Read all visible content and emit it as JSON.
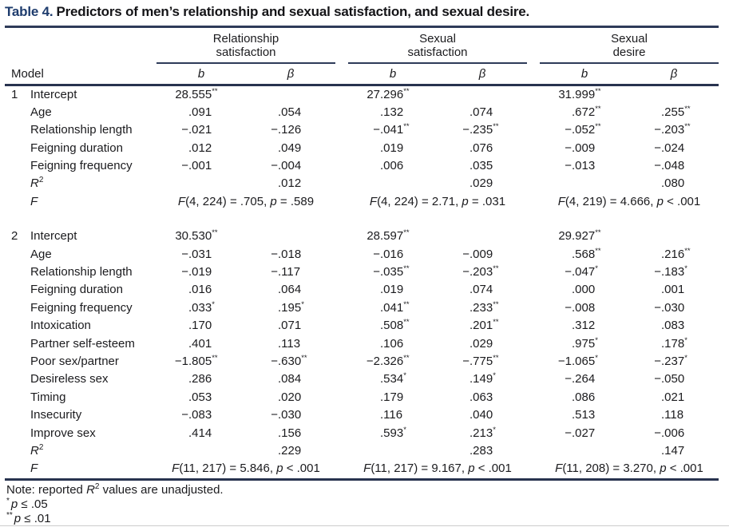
{
  "table": {
    "label": "Table 4.",
    "title": "Predictors of men’s relationship and sexual satisfaction, and sexual desire.",
    "model_header": "Model",
    "sub_headers": [
      "b",
      "β"
    ],
    "col_groups": [
      {
        "line1": "Relationship",
        "line2": "satisfaction"
      },
      {
        "line1": "Sexual",
        "line2": "satisfaction"
      },
      {
        "line1": "Sexual",
        "line2": "desire"
      }
    ],
    "models": [
      {
        "number": "1",
        "rows": [
          {
            "label": "Intercept",
            "cells": [
              "28.555**",
              "",
              "27.296**",
              "",
              "31.999**",
              ""
            ]
          },
          {
            "label": "Age",
            "cells": [
              ".091",
              ".054",
              ".132",
              ".074",
              ".672**",
              ".255**"
            ]
          },
          {
            "label": "Relationship length",
            "cells": [
              "−.021",
              "−.126",
              "−.041**",
              "−.235**",
              "−.052**",
              "−.203**"
            ]
          },
          {
            "label": "Feigning duration",
            "cells": [
              ".012",
              ".049",
              ".019",
              ".076",
              "−.009",
              "−.024"
            ]
          },
          {
            "label": "Feigning frequency",
            "cells": [
              "−.001",
              "−.004",
              ".006",
              ".035",
              "−.013",
              "−.048"
            ]
          },
          {
            "label": "R2",
            "math": "r2",
            "cells": [
              "",
              ".012",
              "",
              ".029",
              "",
              ".080"
            ]
          }
        ],
        "f_row": {
          "label": "F",
          "stats": [
            "F(4, 224) = .705, p = .589",
            "F(4, 224) = 2.71, p = .031",
            "F(4, 219) = 4.666, p < .001"
          ]
        }
      },
      {
        "number": "2",
        "rows": [
          {
            "label": "Intercept",
            "cells": [
              "30.530**",
              "",
              "28.597**",
              "",
              "29.927**",
              ""
            ]
          },
          {
            "label": "Age",
            "cells": [
              "−.031",
              "−.018",
              "−.016",
              "−.009",
              ".568**",
              ".216**"
            ]
          },
          {
            "label": "Relationship length",
            "cells": [
              "−.019",
              "−.117",
              "−.035**",
              "−.203**",
              "−.047*",
              "−.183*"
            ]
          },
          {
            "label": "Feigning duration",
            "cells": [
              ".016",
              ".064",
              ".019",
              ".074",
              ".000",
              ".001"
            ]
          },
          {
            "label": "Feigning frequency",
            "cells": [
              ".033*",
              ".195*",
              ".041**",
              ".233**",
              "−.008",
              "−.030"
            ]
          },
          {
            "label": "Intoxication",
            "cells": [
              ".170",
              ".071",
              ".508**",
              ".201**",
              ".312",
              ".083"
            ]
          },
          {
            "label": "Partner self-esteem",
            "cells": [
              ".401",
              ".113",
              ".106",
              ".029",
              ".975*",
              ".178*"
            ]
          },
          {
            "label": "Poor sex/partner",
            "cells": [
              "−1.805**",
              "−.630**",
              "−2.326**",
              "−.775**",
              "−1.065*",
              "−.237*"
            ]
          },
          {
            "label": "Desireless sex",
            "cells": [
              ".286",
              ".084",
              ".534*",
              ".149*",
              "−.264",
              "−.050"
            ]
          },
          {
            "label": "Timing",
            "cells": [
              ".053",
              ".020",
              ".179",
              ".063",
              ".086",
              ".021"
            ]
          },
          {
            "label": "Insecurity",
            "cells": [
              "−.083",
              "−.030",
              ".116",
              ".040",
              ".513",
              ".118"
            ]
          },
          {
            "label": "Improve sex",
            "cells": [
              ".414",
              ".156",
              ".593*",
              ".213*",
              "−.027",
              "−.006"
            ]
          },
          {
            "label": "R2",
            "math": "r2",
            "cells": [
              "",
              ".229",
              "",
              ".283",
              "",
              ".147"
            ]
          }
        ],
        "f_row": {
          "label": "F",
          "stats": [
            "F(11, 217) = 5.846, p < .001",
            "F(11, 217) = 9.167, p < .001",
            "F(11, 208) = 3.270, p < .001"
          ]
        }
      }
    ],
    "notes": {
      "note": {
        "prefix": "Note: reported ",
        "symbol": "R",
        "sup": "2",
        "suffix": " values are unadjusted."
      },
      "sig": [
        {
          "stars": "*",
          "var": "p",
          "rest": " ≤ .05"
        },
        {
          "stars": "**",
          "var": "p",
          "rest": " ≤ .01"
        }
      ]
    }
  }
}
